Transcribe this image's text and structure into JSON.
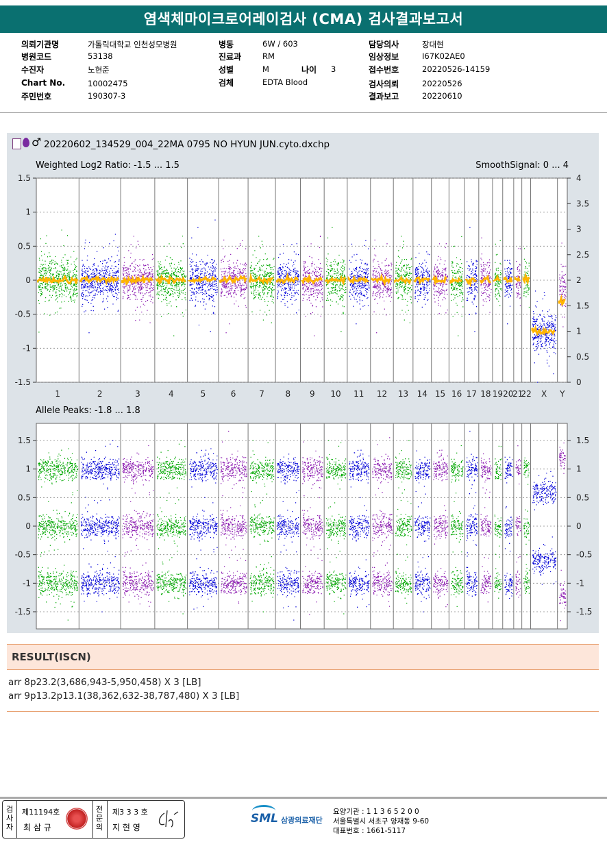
{
  "title": "염색체마이크로어레이검사 (CMA) 검사결과보고서",
  "info": {
    "col1": [
      {
        "label": "의뢰기관명",
        "value": "가톨릭대학교 인천성모병원"
      },
      {
        "label": "병원코드",
        "value": "53138"
      },
      {
        "label": "수진자",
        "value": "노현준"
      },
      {
        "label": "Chart No.",
        "value": "10002475"
      },
      {
        "label": "주민번호",
        "value": "190307-3"
      }
    ],
    "col2": [
      {
        "label": "병동",
        "value": "6W / 603"
      },
      {
        "label": "진료과",
        "value": "RM"
      },
      {
        "label": "성별",
        "value": "M"
      },
      {
        "label": "검체",
        "value": "EDTA Blood"
      }
    ],
    "age": {
      "label": "나이",
      "value": "3"
    },
    "col3": [
      {
        "label": "담당의사",
        "value": "장대현"
      },
      {
        "label": "임상정보",
        "value": "I67K02AE0"
      },
      {
        "label": "접수번호",
        "value": "20220526-14159"
      },
      {
        "label": "검사의뢰",
        "value": "20220526"
      },
      {
        "label": "결과보고",
        "value": "20220610"
      }
    ]
  },
  "plot": {
    "filename": "20220602_134529_004_22MA 0795 NO HYUN JUN.cyto.dxchp",
    "sex_symbol": "♂",
    "panel1_title": "Weighted Log2 Ratio: -1.5 ... 1.5",
    "panel1_right_title": "SmoothSignal: 0 ... 4",
    "panel2_title": "Allele Peaks: -1.8 ... 1.8"
  },
  "chart_data": [
    {
      "type": "scatter",
      "title": "Weighted Log2 Ratio: -1.5 ... 1.5",
      "right_axis_title": "SmoothSignal: 0 ... 4",
      "categories": [
        "1",
        "2",
        "3",
        "4",
        "5",
        "6",
        "7",
        "8",
        "9",
        "10",
        "11",
        "12",
        "13",
        "14",
        "15",
        "16",
        "17",
        "18",
        "19",
        "20",
        "21",
        "22",
        "X",
        "Y"
      ],
      "ylim": [
        -1.5,
        1.5
      ],
      "yticks": [
        "1.5",
        "1",
        "0.5",
        "0",
        "-0.5",
        "-1",
        "-1.5"
      ],
      "y2lim": [
        0,
        4
      ],
      "y2ticks": [
        "4",
        "3.5",
        "3",
        "2.5",
        "2",
        "1.5",
        "1",
        "0.5",
        "0"
      ],
      "series": [
        {
          "name": "Weighted Log2 Ratio",
          "values": [
            0,
            0,
            0,
            0,
            0,
            0,
            0,
            0,
            0,
            0,
            0,
            0,
            0,
            0,
            0,
            0,
            0,
            0,
            0,
            0,
            0,
            0,
            -0.75,
            -0.1
          ]
        },
        {
          "name": "SmoothSignal",
          "values": [
            2,
            2,
            2,
            2,
            2,
            2,
            2,
            2,
            2,
            2,
            2,
            2,
            2,
            2,
            2,
            2,
            2,
            2,
            2,
            2,
            2,
            2,
            1,
            1.6
          ]
        }
      ],
      "grid": true
    },
    {
      "type": "scatter",
      "title": "Allele Peaks: -1.8 ... 1.8",
      "ylim": [
        -1.8,
        1.8
      ],
      "yticks": [
        "1.5",
        "1",
        "0.5",
        "0",
        "-0.5",
        "-1",
        "-1.5"
      ],
      "series": [
        {
          "values": [
            1,
            1,
            1,
            1,
            1,
            1,
            1,
            1,
            1,
            1,
            1,
            1,
            1,
            1,
            1,
            1,
            1,
            1,
            1,
            1,
            1,
            1,
            0.6,
            1.2
          ]
        },
        {
          "values": [
            0,
            0,
            0,
            0,
            0,
            0,
            0,
            0,
            0,
            0,
            0,
            0,
            0,
            0,
            0,
            0,
            0,
            0,
            0,
            0,
            0,
            0,
            null,
            null
          ]
        },
        {
          "values": [
            -1,
            -1,
            -1,
            -1,
            -1,
            -1,
            -1,
            -1,
            -1,
            -1,
            -1,
            -1,
            -1,
            -1,
            -1,
            -1,
            -1,
            -1,
            -1,
            -1,
            -1,
            -1,
            -0.6,
            -1.2
          ]
        }
      ],
      "grid": true
    }
  ],
  "colors": {
    "green": "#00a800",
    "blue": "#0000d8",
    "purple": "#8a18b0",
    "orange": "#ffb400",
    "teal": "#0a7070"
  },
  "result": {
    "heading": "RESULT(ISCN)",
    "lines": [
      "arr 8p23.2(3,686,943-5,950,458) X 3 [LB]",
      "arr 9p13.2p13.1(38,362,632-38,787,480) X 3 [LB]"
    ]
  },
  "footer": {
    "stamp1_side": "검사자",
    "stamp1_no": "제11194호",
    "stamp1_name": "최 삼 규",
    "stamp2_side": "전문의",
    "stamp2_no": "제3 3 3 호",
    "stamp2_name": "지 현 영",
    "logo": "SML",
    "org": "삼광의료재단",
    "addr1": "요양기관 : 1 1 3 6 5 2 0 0",
    "addr2": "서울특별시 서초구 양재동 9-60",
    "addr3": "대표번호 : 1661-5117"
  }
}
